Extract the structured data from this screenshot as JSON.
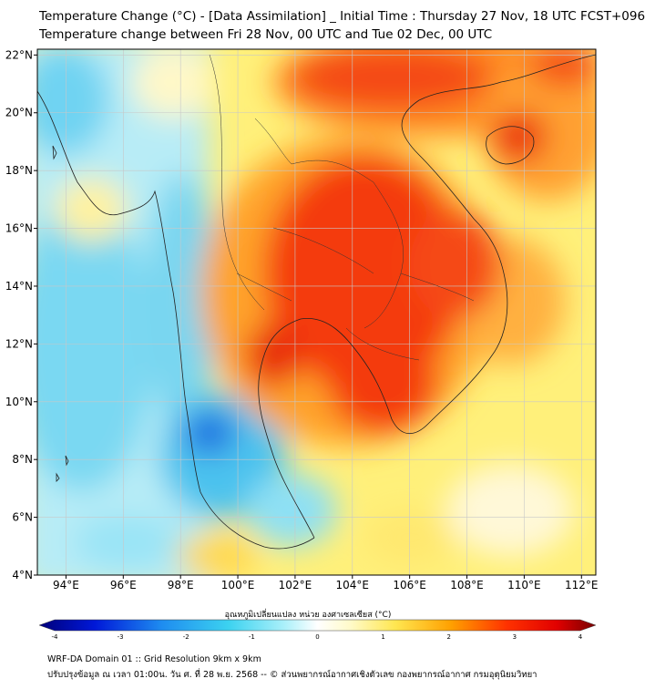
{
  "header": {
    "title_line1": "Temperature Change (°C) - [Data Assimilation] _ Initial Time : Thursday 27 Nov, 18 UTC FCST+096",
    "title_line2": "Temperature change between Fri 28 Nov, 00 UTC and Tue 02 Dec, 00 UTC"
  },
  "map": {
    "lon_ticks": [
      "94°E",
      "96°E",
      "98°E",
      "100°E",
      "102°E",
      "104°E",
      "106°E",
      "108°E",
      "110°E",
      "112°E"
    ],
    "lon_values": [
      94,
      96,
      98,
      100,
      102,
      104,
      106,
      108,
      110,
      112
    ],
    "lat_ticks": [
      "22°N",
      "20°N",
      "18°N",
      "16°N",
      "14°N",
      "12°N",
      "10°N",
      "8°N",
      "6°N",
      "4°N"
    ],
    "lat_values": [
      22,
      20,
      18,
      16,
      14,
      12,
      10,
      8,
      6,
      4
    ],
    "lon_range": [
      93,
      112.5
    ],
    "lat_range": [
      4,
      22.2
    ],
    "grid": true,
    "colors": {
      "coastline": "#222222",
      "grid": "#c8c8c8"
    }
  },
  "colorbar": {
    "label": "อุณหภูมิเปลี่ยนแปลง หน่วย องศาเซลเซียส (°C)",
    "ticks": [
      "-4",
      "-3",
      "-2",
      "-1",
      "0",
      "1",
      "2",
      "3",
      "4"
    ],
    "tick_values": [
      -4,
      -3,
      -2,
      -1,
      0,
      1,
      2,
      3,
      4
    ],
    "range": [
      -4,
      4
    ],
    "colors": [
      "#00007a",
      "#0018d8",
      "#1e8cf0",
      "#3cd2f0",
      "#aaf0fa",
      "#ffffff",
      "#fffac8",
      "#ffe650",
      "#ffa000",
      "#ff3200",
      "#e10000",
      "#780000"
    ]
  },
  "footer": {
    "line1": "WRF-DA Domain 01 :: Grid Resolution 9km x 9km",
    "line2": "ปรับปรุงข้อมูล ณ เวลา 01:00น. วัน ศ. ที่ 28 พ.ย. 2568 -- © ส่วนพยากรณ์อากาศเชิงตัวเลข กองพยากรณ์อากาศ กรมอุตุนิยมวิทยา"
  }
}
